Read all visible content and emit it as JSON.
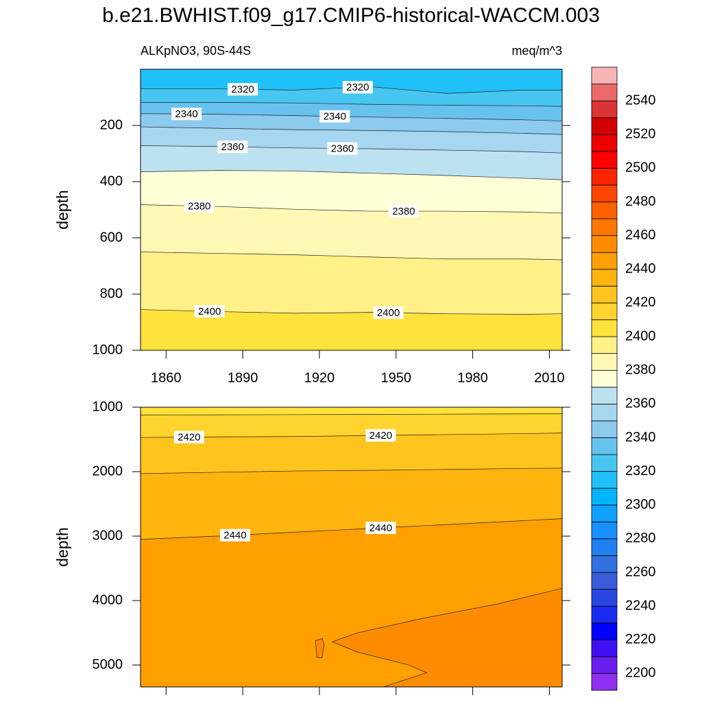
{
  "title": "b.e21.BWHIST.f09_g17.CMIP6-historical-WACCM.003",
  "colorbar": {
    "levels": [
      2200,
      2210,
      2220,
      2230,
      2240,
      2250,
      2260,
      2270,
      2280,
      2290,
      2300,
      2310,
      2320,
      2330,
      2340,
      2350,
      2360,
      2370,
      2380,
      2390,
      2400,
      2410,
      2420,
      2430,
      2440,
      2450,
      2460,
      2470,
      2480,
      2490,
      2500,
      2510,
      2520,
      2530,
      2540,
      2550
    ],
    "colors": [
      "#9030f0",
      "#6a1ef0",
      "#4010f5",
      "#0000ff",
      "#1a2cf0",
      "#2a45e0",
      "#3a5cd8",
      "#3070e0",
      "#2080f0",
      "#1890ff",
      "#10a0ff",
      "#00b4ff",
      "#20c0f8",
      "#48c6f2",
      "#68c2ee",
      "#8ccaee",
      "#a6d6f0",
      "#bce2f2",
      "#ffffd8",
      "#fff8b4",
      "#fff088",
      "#ffe23c",
      "#ffd42e",
      "#ffc41e",
      "#ffb40e",
      "#ffa000",
      "#ff8c00",
      "#ff7600",
      "#ff6000",
      "#ff4500",
      "#ff2400",
      "#ff0000",
      "#ee0000",
      "#d40000",
      "#dd3333",
      "#ea6a6a",
      "#f8b4b4"
    ],
    "ticks": [
      2200,
      2220,
      2240,
      2260,
      2280,
      2300,
      2320,
      2340,
      2360,
      2380,
      2400,
      2420,
      2440,
      2460,
      2480,
      2500,
      2520,
      2540
    ]
  },
  "chart_data": [
    {
      "type": "contour",
      "subtitle_left": "ALKpNO3, 90S-44S",
      "subtitle_right": "meq/m^3",
      "ylabel": "depth",
      "xlim": [
        1850,
        2015
      ],
      "ylim": [
        0,
        1000
      ],
      "y_reversed": true,
      "xticks": [
        1860,
        1890,
        1920,
        1950,
        1980,
        2010
      ],
      "yticks": [
        200,
        400,
        600,
        800,
        1000
      ],
      "xtick_labels": true,
      "x": [
        1850,
        1880,
        1910,
        1940,
        1970,
        2000,
        2015
      ],
      "contours": [
        {
          "level": 2320,
          "values": [
            70,
            70,
            74,
            62,
            86,
            74,
            74
          ],
          "label_x": [
            1890,
            1935
          ]
        },
        {
          "level": 2330,
          "values": [
            118,
            118,
            120,
            125,
            128,
            130,
            132
          ]
        },
        {
          "level": 2340,
          "values": [
            158,
            160,
            165,
            170,
            175,
            180,
            184
          ],
          "label_x": [
            1868,
            1926
          ]
        },
        {
          "level": 2350,
          "values": [
            205,
            210,
            215,
            218,
            222,
            228,
            232
          ]
        },
        {
          "level": 2360,
          "values": [
            272,
            275,
            280,
            283,
            288,
            293,
            298
          ],
          "label_x": [
            1886,
            1929
          ]
        },
        {
          "level": 2370,
          "values": [
            365,
            360,
            362,
            370,
            378,
            388,
            393
          ]
        },
        {
          "level": 2380,
          "values": [
            482,
            488,
            498,
            505,
            505,
            508,
            512
          ],
          "label_x": [
            1873,
            1953
          ]
        },
        {
          "level": 2390,
          "values": [
            650,
            655,
            660,
            668,
            675,
            675,
            678
          ]
        },
        {
          "level": 2400,
          "values": [
            855,
            862,
            868,
            865,
            870,
            872,
            870
          ],
          "label_x": [
            1877,
            1947
          ]
        }
      ]
    },
    {
      "type": "contour",
      "ylabel": "depth",
      "xlim": [
        1850,
        2015
      ],
      "ylim": [
        1000,
        5340
      ],
      "y_reversed": true,
      "xticks": [
        1860,
        1890,
        1920,
        1950,
        1980,
        2010
      ],
      "yticks": [
        1000,
        2000,
        3000,
        4000,
        5000
      ],
      "xtick_labels": false,
      "x": [
        1850,
        1880,
        1910,
        1940,
        1970,
        2000,
        2015
      ],
      "contours": [
        {
          "level": 2410,
          "values": [
            1120,
            1118,
            1115,
            1112,
            1108,
            1104,
            1100
          ]
        },
        {
          "level": 2420,
          "values": [
            1470,
            1460,
            1455,
            1440,
            1425,
            1410,
            1400
          ],
          "label_x": [
            1869,
            1944
          ]
        },
        {
          "level": 2430,
          "values": [
            2030,
            2010,
            1990,
            1980,
            1965,
            1950,
            1945
          ]
        },
        {
          "level": 2440,
          "values": [
            3050,
            3000,
            2940,
            2880,
            2820,
            2760,
            2730
          ],
          "label_x": [
            1887,
            1944
          ]
        },
        {
          "level": 2450,
          "closed": true,
          "x": [
            2015,
            1990,
            1960,
            1935,
            1925,
            1935,
            1955,
            1962,
            1945,
            2015
          ],
          "values": [
            3810,
            4050,
            4280,
            4500,
            4640,
            4800,
            5000,
            5120,
            5340,
            5340
          ]
        },
        {
          "level": 2450,
          "closed": true,
          "x": [
            1918.5,
            1919,
            1921,
            1921.8,
            1921.2,
            1918.5
          ],
          "values": [
            4620,
            4880,
            4890,
            4700,
            4590,
            4620
          ]
        }
      ]
    }
  ]
}
